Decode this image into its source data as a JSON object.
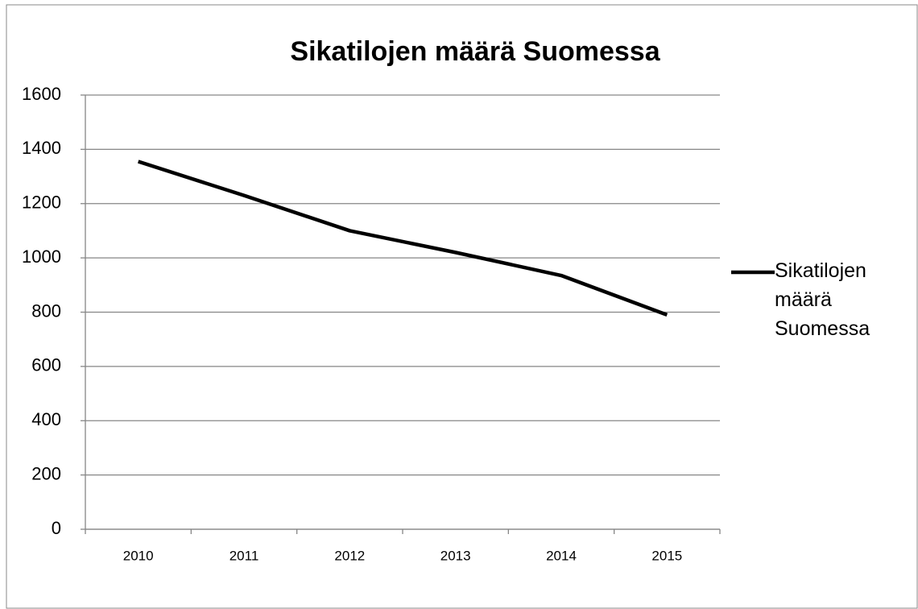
{
  "chart_data": {
    "type": "line",
    "title": "Sikatilojen määrä Suomessa",
    "categories": [
      "2010",
      "2011",
      "2012",
      "2013",
      "2014",
      "2015"
    ],
    "series": [
      {
        "name": "Sikatilojen määrä Suomessa",
        "color": "#000000",
        "values": [
          1355,
          1230,
          1100,
          1020,
          935,
          790
        ]
      }
    ],
    "ylim": [
      0,
      1600
    ],
    "yticks": [
      0,
      200,
      400,
      600,
      800,
      1000,
      1200,
      1400,
      1600
    ],
    "grid": true,
    "legend": "right"
  }
}
